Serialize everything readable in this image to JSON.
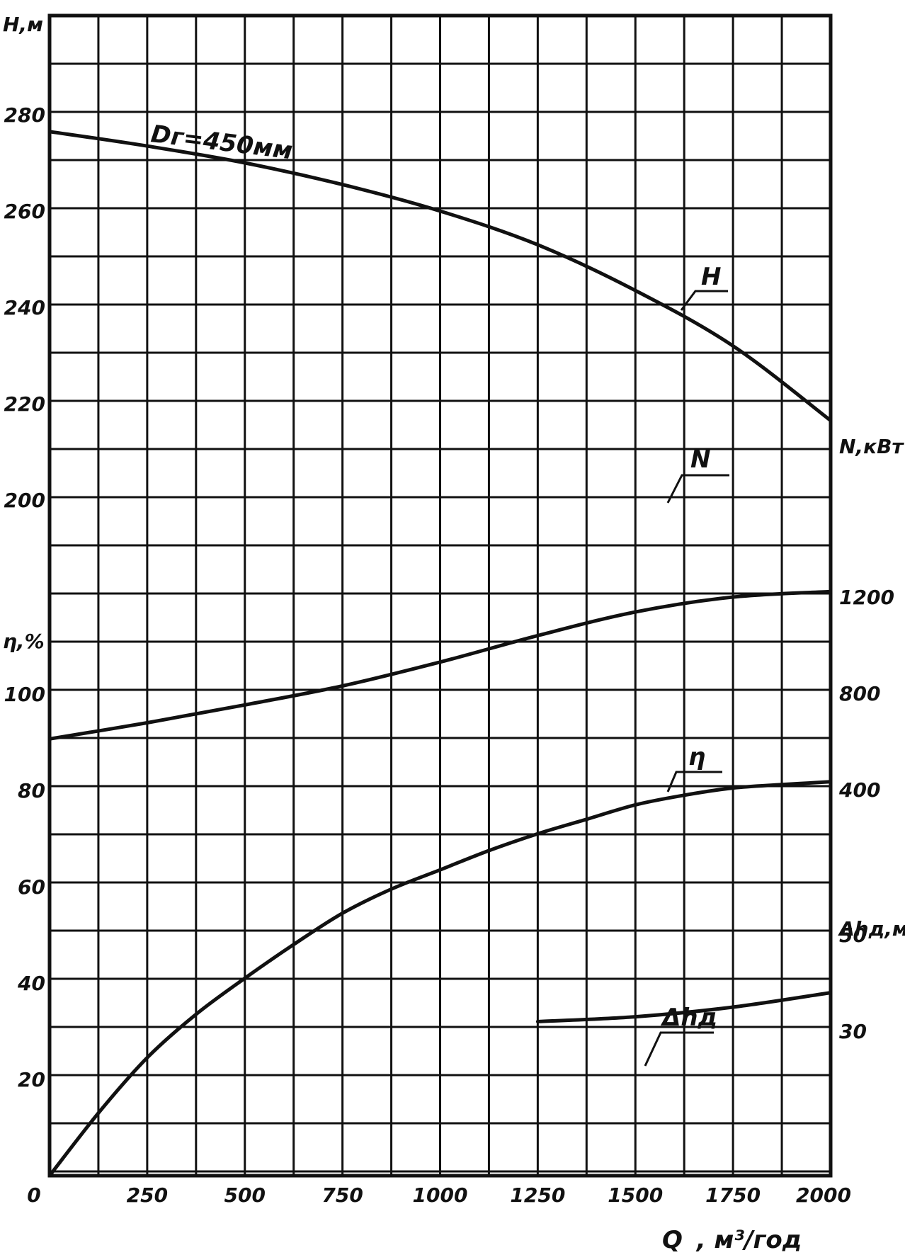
{
  "chart_data": {
    "type": "line",
    "x_axis": {
      "label_prefix": "Q",
      "label_unit": "м³/год",
      "range": [
        0,
        2000
      ],
      "ticks": [
        "0",
        "250",
        "500",
        "750",
        "1000",
        "1250",
        "1500",
        "1750",
        "2000"
      ]
    },
    "axes": {
      "H": {
        "label": "H,м",
        "ticks": [
          "200",
          "220",
          "240",
          "260",
          "280"
        ],
        "range": [
          200,
          280
        ]
      },
      "eta": {
        "label": "η,%",
        "ticks": [
          "20",
          "40",
          "60",
          "80",
          "100"
        ],
        "range": [
          0,
          100
        ]
      },
      "N": {
        "label": "N,кВт",
        "ticks": [
          "400",
          "800",
          "1200"
        ]
      },
      "dh": {
        "label": "Δhд,м",
        "ticks": [
          "30",
          "50"
        ]
      }
    },
    "curve_annotation": "Dг=450мм",
    "series": [
      {
        "name": "H",
        "axis": "H",
        "x": [
          0,
          250,
          500,
          750,
          1000,
          1250,
          1500,
          1750,
          2000
        ],
        "y": [
          276.5,
          273.5,
          270,
          265.5,
          260,
          253,
          243.5,
          232,
          216.5
        ]
      },
      {
        "name": "N",
        "axis": "N",
        "x": [
          0,
          250,
          500,
          750,
          1000,
          1250,
          1500,
          1750,
          2000
        ],
        "y": [
          611,
          678,
          752,
          831,
          930,
          1040,
          1138,
          1200,
          1223
        ]
      },
      {
        "name": "η",
        "axis": "eta",
        "x": [
          0,
          125,
          250,
          375,
          500,
          625,
          750,
          875,
          1000,
          1125,
          1250,
          1375,
          1500,
          1625,
          1750,
          1875,
          2000
        ],
        "y": [
          0,
          13,
          24.5,
          33.5,
          41,
          48,
          54.5,
          59.5,
          63.5,
          67.5,
          71,
          74,
          77,
          79,
          80.5,
          81.2,
          81.8
        ]
      },
      {
        "name": "Δhд",
        "axis": "dh",
        "x": [
          1250,
          1500,
          1750,
          2000
        ],
        "y": [
          32,
          33,
          35,
          38
        ]
      }
    ],
    "grid": true
  }
}
